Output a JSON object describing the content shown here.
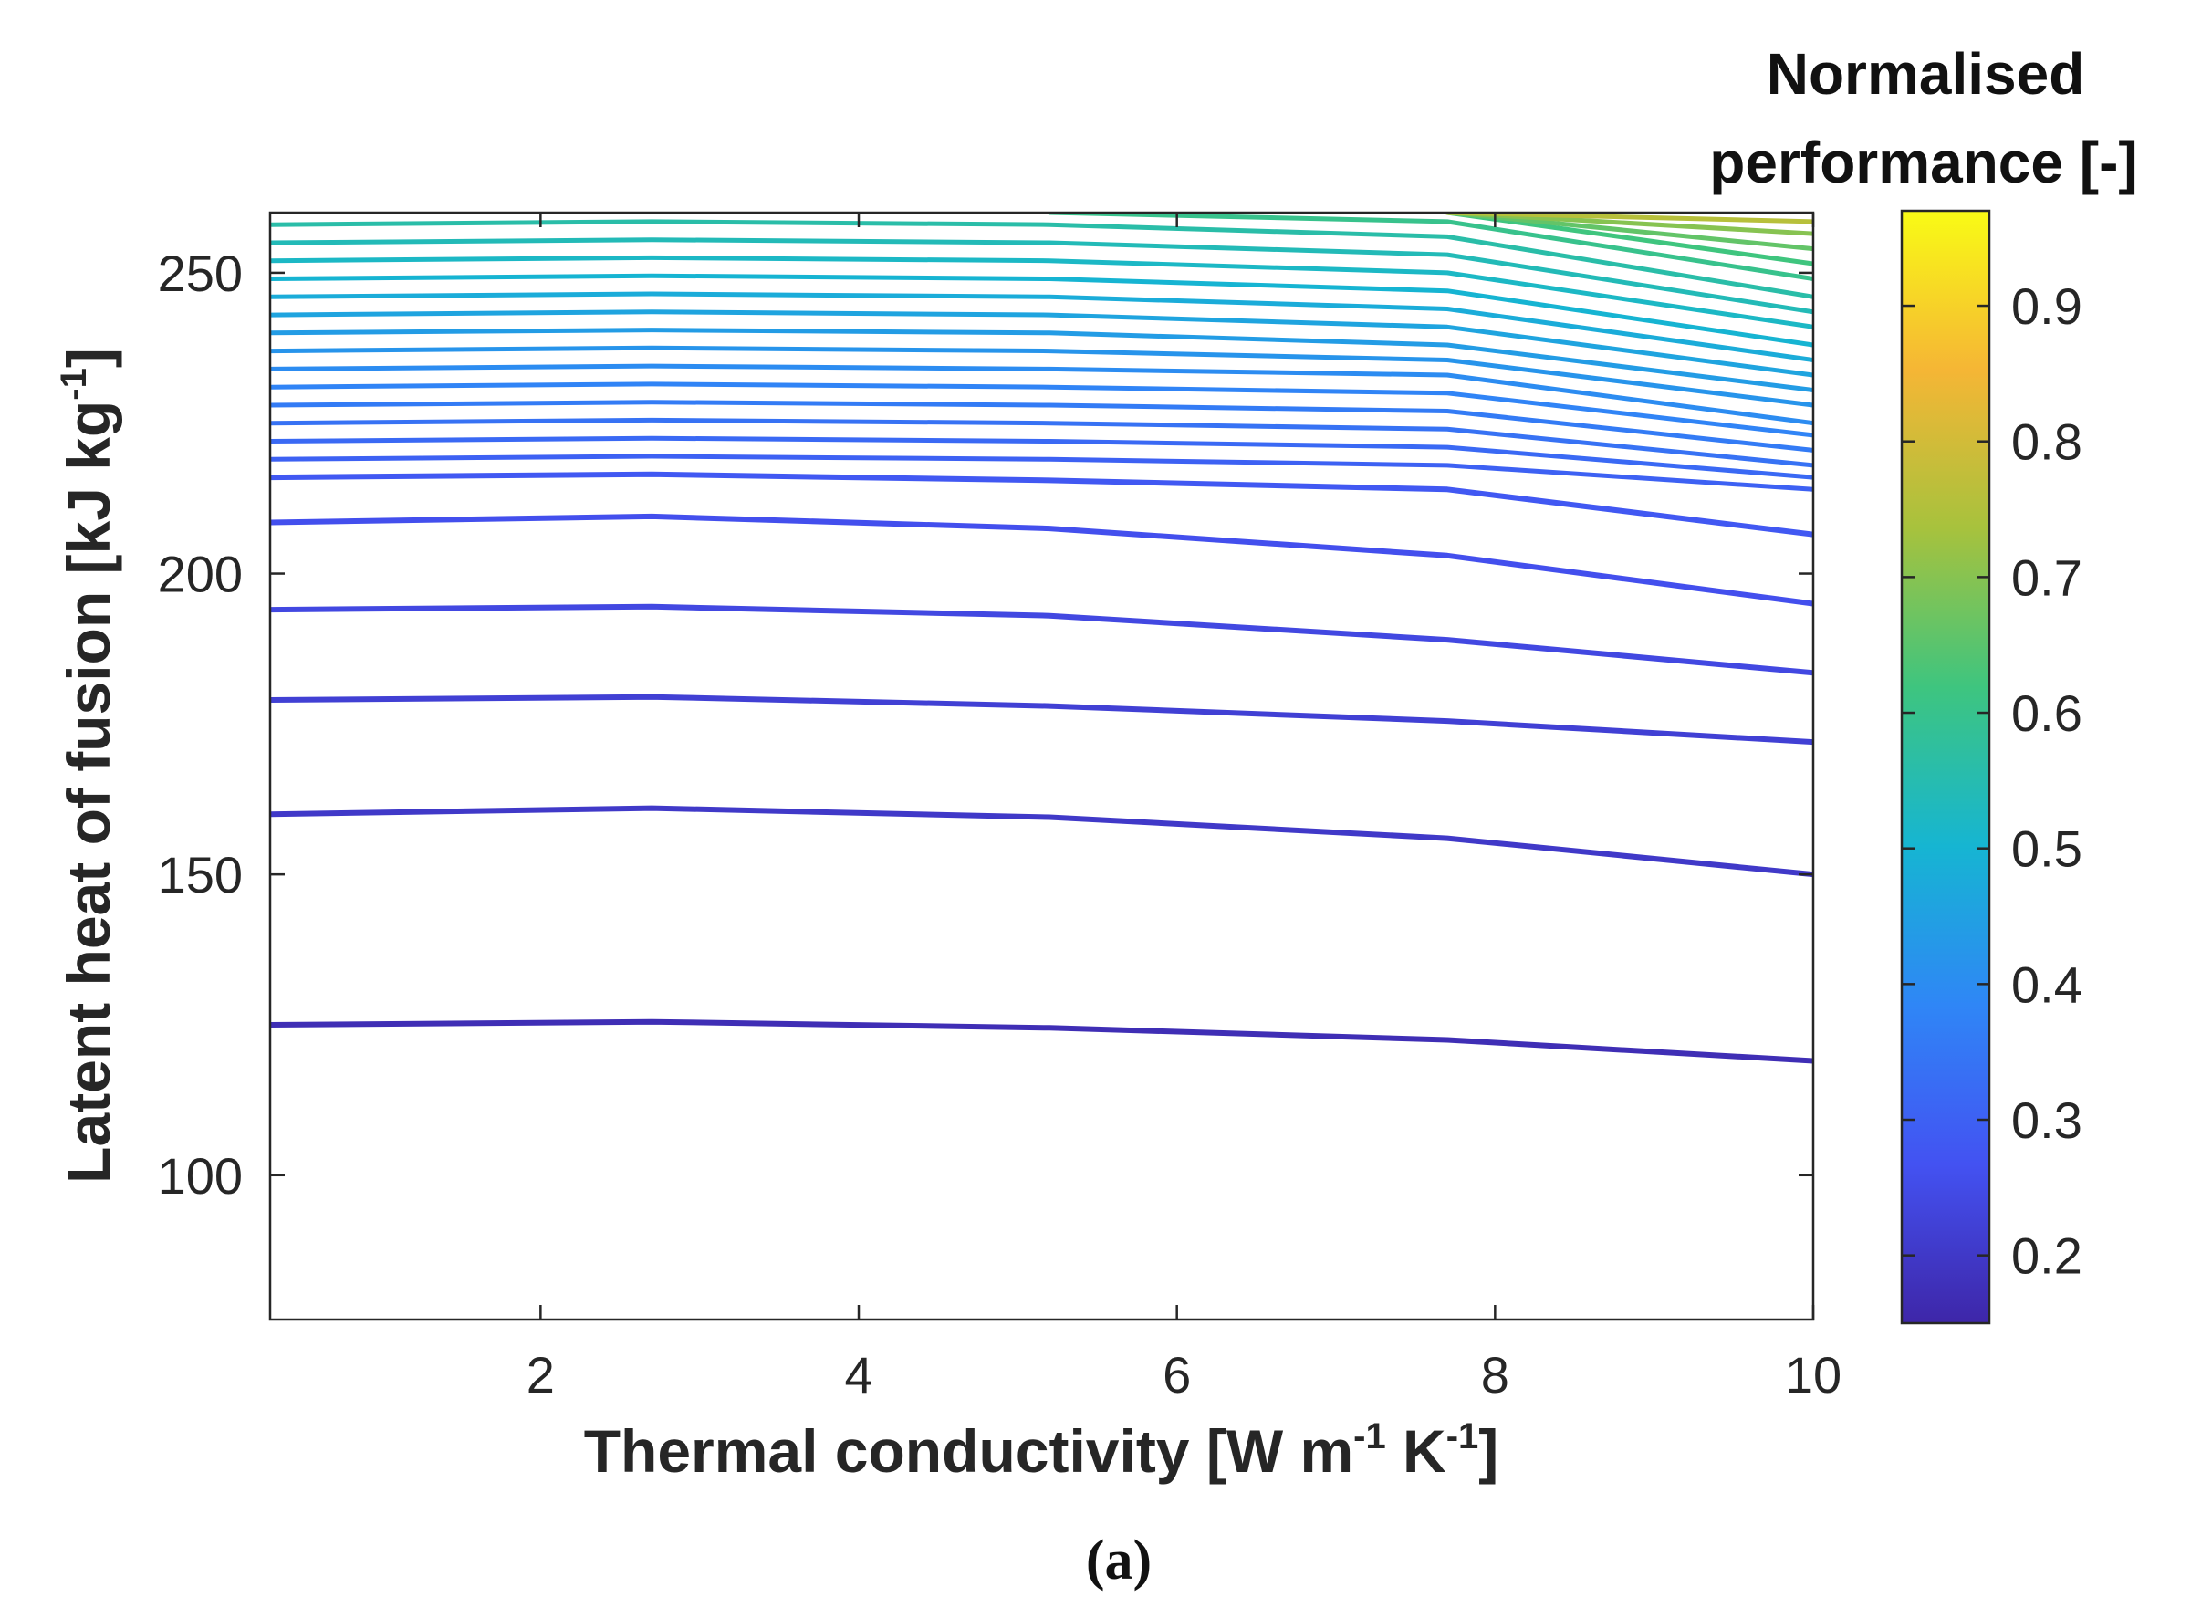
{
  "chart_data": {
    "type": "contour",
    "xlabel": "Thermal conductivity [W m",
    "xlabel_sup1": "-1",
    "xlabel_mid": " K",
    "xlabel_sup2": "-1",
    "xlabel_end": "]",
    "ylabel": "Latent heat of fusion [kJ kg",
    "ylabel_sup": "-1",
    "ylabel_end": "]",
    "xlim": [
      0.3,
      10
    ],
    "ylim": [
      76,
      260
    ],
    "xticks": [
      2,
      4,
      6,
      8,
      10
    ],
    "yticks": [
      100,
      150,
      200,
      250
    ],
    "colorbar": {
      "title_line1": "Normalised",
      "title_line2": "performance [-]",
      "range": [
        0.15,
        0.97
      ],
      "ticks": [
        0.2,
        0.3,
        0.4,
        0.5,
        0.6,
        0.7,
        0.8,
        0.9
      ],
      "stops": [
        "#3e26a8",
        "#4352f2",
        "#2f86f6",
        "#16b5d2",
        "#3ec57f",
        "#a7c23d",
        "#f5b635",
        "#f9fb15"
      ]
    },
    "contour_x": [
      0.3,
      2.7,
      5.2,
      7.7,
      10.0
    ],
    "contours": [
      {
        "level": 0.17,
        "y": [
          125,
          125.5,
          124.5,
          122.5,
          119
        ]
      },
      {
        "level": 0.2,
        "y": [
          160,
          161,
          159.5,
          156,
          150
        ]
      },
      {
        "level": 0.22,
        "y": [
          179,
          179.5,
          178,
          175.5,
          172
        ]
      },
      {
        "level": 0.24,
        "y": [
          194,
          194.5,
          193,
          189,
          183.5
        ]
      },
      {
        "level": 0.26,
        "y": [
          208.5,
          209.5,
          207.5,
          203,
          195
        ]
      },
      {
        "level": 0.28,
        "y": [
          216,
          216.5,
          215.5,
          214,
          206.5
        ]
      },
      {
        "level": 0.3,
        "y": [
          219,
          219.5,
          219,
          218,
          214
        ]
      },
      {
        "level": 0.32,
        "y": [
          222,
          222.5,
          222,
          221,
          216
        ]
      },
      {
        "level": 0.34,
        "y": [
          225,
          225.5,
          225,
          224,
          218
        ]
      },
      {
        "level": 0.36,
        "y": [
          228,
          228.5,
          228,
          227,
          220.5
        ]
      },
      {
        "level": 0.38,
        "y": [
          231,
          231.5,
          231,
          230,
          223
        ]
      },
      {
        "level": 0.4,
        "y": [
          234,
          234.5,
          234,
          233,
          225
        ]
      },
      {
        "level": 0.42,
        "y": [
          237,
          237.5,
          237,
          235.5,
          228
        ]
      },
      {
        "level": 0.44,
        "y": [
          240,
          240.5,
          240,
          238,
          230.5
        ]
      },
      {
        "level": 0.46,
        "y": [
          243,
          243.5,
          243,
          241,
          233
        ]
      },
      {
        "level": 0.48,
        "y": [
          246,
          246.5,
          246,
          244,
          235.5
        ]
      },
      {
        "level": 0.5,
        "y": [
          249,
          249.5,
          249,
          247,
          238
        ]
      },
      {
        "level": 0.52,
        "y": [
          252,
          252.5,
          252,
          250,
          241
        ]
      },
      {
        "level": 0.54,
        "y": [
          255,
          255.5,
          255,
          253,
          243.5
        ]
      },
      {
        "level": 0.56,
        "y": [
          258,
          258.5,
          258,
          256,
          246
        ]
      },
      {
        "level": 0.6,
        "y": [
          null,
          null,
          260,
          258.5,
          249
        ]
      },
      {
        "level": 0.62,
        "y": [
          null,
          null,
          null,
          260,
          251.5
        ]
      },
      {
        "level": 0.66,
        "y": [
          null,
          null,
          null,
          260,
          254
        ]
      },
      {
        "level": 0.7,
        "y": [
          null,
          null,
          null,
          260,
          256.5
        ]
      },
      {
        "level": 0.76,
        "y": [
          null,
          null,
          null,
          260,
          258.5
        ]
      }
    ]
  },
  "caption": "(a)"
}
